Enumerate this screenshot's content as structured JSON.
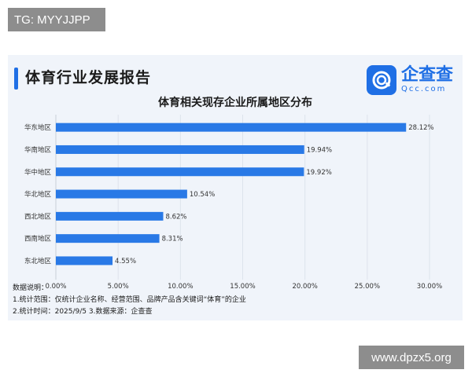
{
  "tg_label": "TG: MYYJJPP",
  "watermark": "www.dpzx5.org",
  "report_title": "体育行业发展报告",
  "logo": {
    "name": "企查查",
    "domain": "Qcc.com"
  },
  "colors": {
    "bar": "#2979e6",
    "accent": "#1f6fe5",
    "background": "#f0f4fa"
  },
  "chart_data": {
    "type": "bar",
    "orientation": "horizontal",
    "title": "体育相关现存企业所属地区分布",
    "categories": [
      "华东地区",
      "华南地区",
      "华中地区",
      "华北地区",
      "西北地区",
      "西南地区",
      "东北地区"
    ],
    "values": [
      28.12,
      19.94,
      19.92,
      10.54,
      8.62,
      8.31,
      4.55
    ],
    "value_labels": [
      "28.12%",
      "19.94%",
      "19.92%",
      "10.54%",
      "8.62%",
      "8.31%",
      "4.55%"
    ],
    "xlim": [
      0,
      30
    ],
    "x_ticks": [
      "0.00%",
      "5.00%",
      "10.00%",
      "15.00%",
      "20.00%",
      "25.00%",
      "30.00%"
    ],
    "xlabel": "",
    "ylabel": "",
    "grid": "vertical"
  },
  "notes": {
    "heading": "数据说明：",
    "line1": "1.统计范围：仅统计企业名称、经营范围、品牌产品含关键词“体育”的企业",
    "line2": "2.统计时间：2025/9/5 3.数据来源：企查查"
  }
}
